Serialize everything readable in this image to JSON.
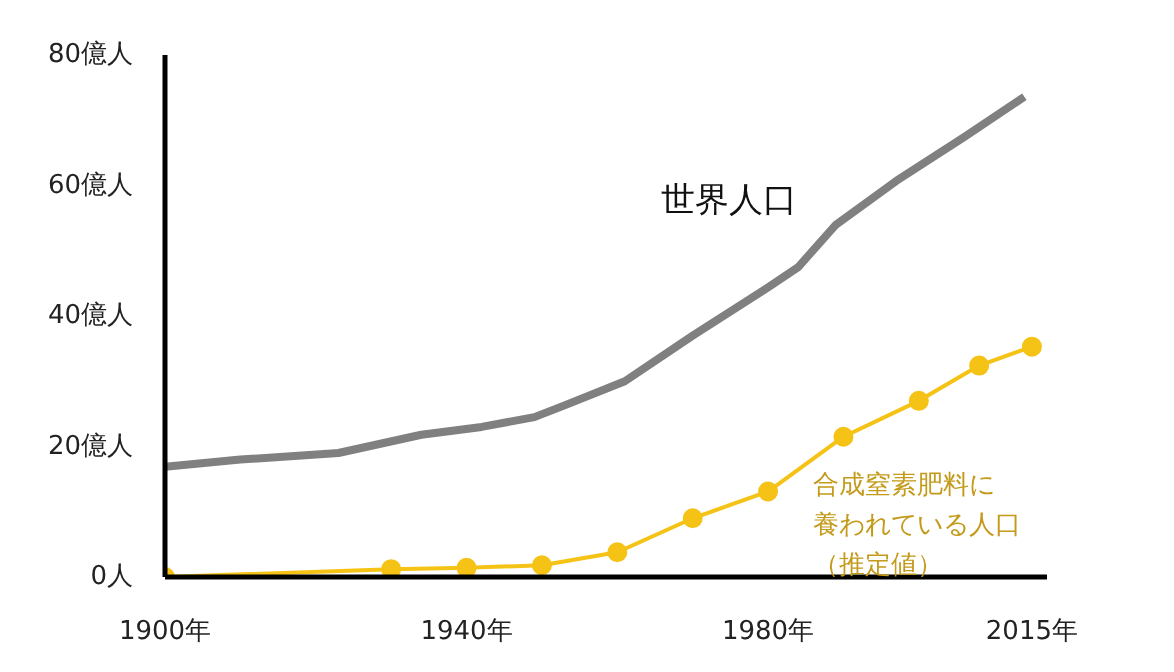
{
  "chart_data": {
    "type": "line",
    "xlim": [
      1900,
      2017
    ],
    "ylim": [
      0,
      80
    ],
    "xticks": [
      {
        "value": 1900,
        "label": "1900年"
      },
      {
        "value": 1940,
        "label": "1940年"
      },
      {
        "value": 1980,
        "label": "1980年"
      },
      {
        "value": 2015,
        "label": "2015年"
      }
    ],
    "yticks": [
      {
        "value": 0,
        "label": "0人"
      },
      {
        "value": 20,
        "label": "20億人"
      },
      {
        "value": 40,
        "label": "40億人"
      },
      {
        "value": 60,
        "label": "60億人"
      },
      {
        "value": 80,
        "label": "80億人"
      }
    ],
    "grid": false,
    "series": [
      {
        "name": "世界人口",
        "color": "#808080",
        "marker": "none",
        "x": [
          1900,
          1910,
          1923,
          1934,
          1942,
          1949,
          1953,
          1961,
          1970,
          1980,
          1984,
          1989,
          1997,
          2006,
          2014
        ],
        "values": [
          16.9,
          18,
          19,
          21.8,
          23,
          24.5,
          26.3,
          30,
          37,
          44.4,
          47.5,
          54,
          60.7,
          67.4,
          73.6
        ]
      },
      {
        "name": "合成窒素肥料に養われている人口（推定値）",
        "color": "#f5c216",
        "marker": "circle",
        "x": [
          1900,
          1930,
          1940,
          1950,
          1960,
          1970,
          1980,
          1990,
          2000,
          2008,
          2015
        ],
        "values": [
          0,
          1.2,
          1.4,
          1.8,
          3.8,
          9,
          13.1,
          21.5,
          27,
          32.4,
          35.3
        ]
      }
    ]
  }
}
